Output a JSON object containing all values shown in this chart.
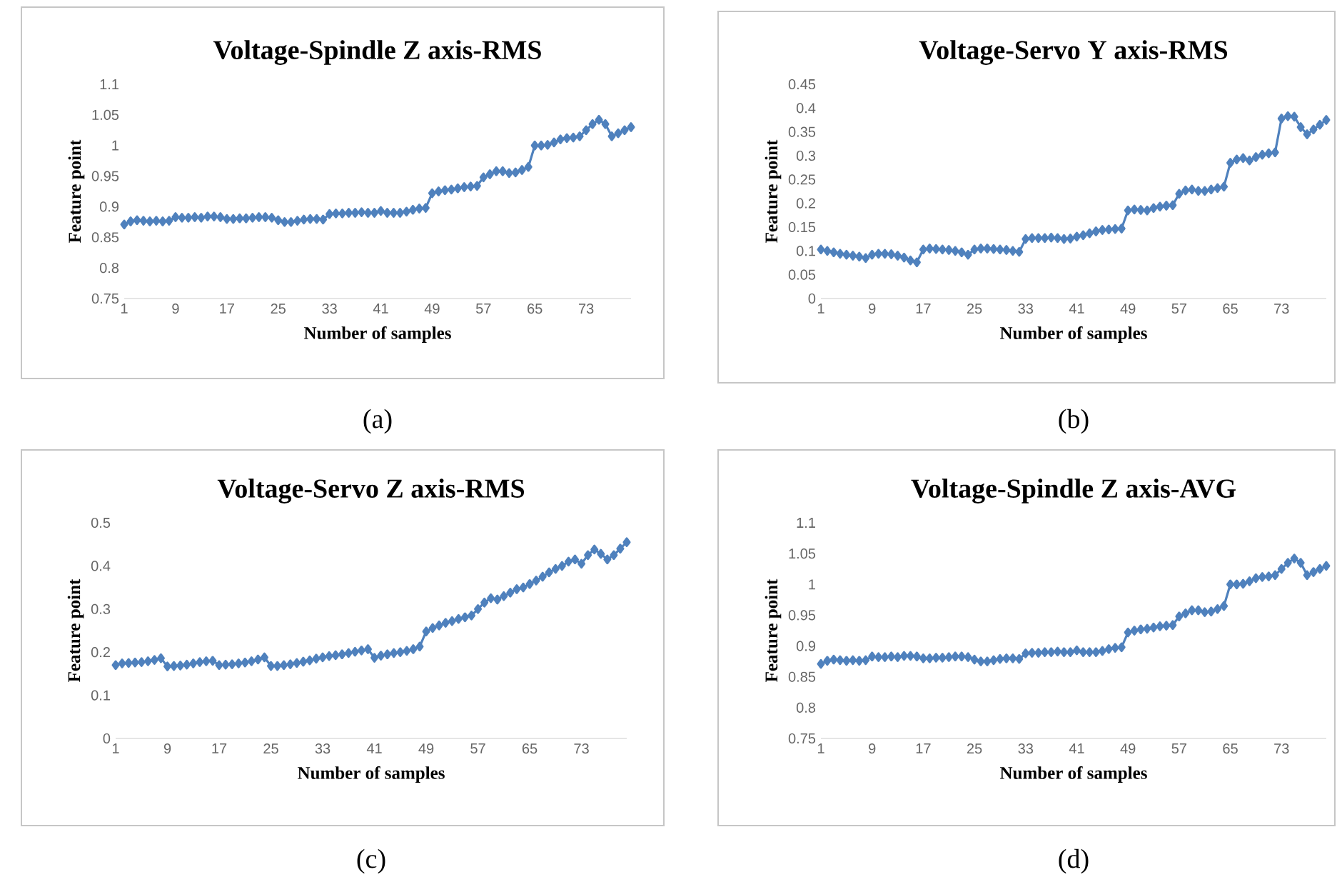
{
  "chart_data": [
    {
      "type": "line",
      "title": "Voltage-Spindle Z axis-RMS",
      "xlabel": "Number of samples",
      "ylabel": "Feature point",
      "annotations": [
        "(a)"
      ],
      "marker": "diamond",
      "color": "#4f81bd",
      "ylim": [
        0.75,
        1.1
      ],
      "yticks": [
        0.75,
        0.8,
        0.85,
        0.9,
        0.95,
        1,
        1.05,
        1.1
      ],
      "categories": [
        "1",
        null,
        null,
        null,
        null,
        null,
        null,
        null,
        "9",
        null,
        null,
        null,
        null,
        null,
        null,
        null,
        "17",
        null,
        null,
        null,
        null,
        null,
        null,
        null,
        "25",
        null,
        null,
        null,
        null,
        null,
        null,
        null,
        "33",
        null,
        null,
        null,
        null,
        null,
        null,
        null,
        "41",
        null,
        null,
        null,
        null,
        null,
        null,
        null,
        "49",
        null,
        null,
        null,
        null,
        null,
        null,
        null,
        "57",
        null,
        null,
        null,
        null,
        null,
        null,
        null,
        "65",
        null,
        null,
        null,
        null,
        null,
        null,
        null,
        "73",
        null,
        null,
        null,
        null,
        null,
        null,
        null
      ],
      "values": [
        0.871,
        0.876,
        0.878,
        0.877,
        0.876,
        0.877,
        0.876,
        0.877,
        0.883,
        0.882,
        0.882,
        0.883,
        0.882,
        0.884,
        0.884,
        0.883,
        0.88,
        0.88,
        0.881,
        0.881,
        0.882,
        0.883,
        0.883,
        0.882,
        0.878,
        0.875,
        0.875,
        0.877,
        0.879,
        0.88,
        0.88,
        0.879,
        0.888,
        0.889,
        0.889,
        0.89,
        0.89,
        0.891,
        0.89,
        0.89,
        0.893,
        0.89,
        0.89,
        0.89,
        0.892,
        0.895,
        0.897,
        0.898,
        0.922,
        0.925,
        0.927,
        0.928,
        0.93,
        0.932,
        0.933,
        0.934,
        0.948,
        0.953,
        0.958,
        0.958,
        0.955,
        0.956,
        0.96,
        0.965,
        1.0,
        1.0,
        1.001,
        1.005,
        1.01,
        1.012,
        1.013,
        1.015,
        1.025,
        1.035,
        1.042,
        1.035,
        1.015,
        1.02,
        1.025,
        1.03
      ]
    },
    {
      "type": "line",
      "title": "Voltage-Servo Y axis-RMS",
      "xlabel": "Number of samples",
      "ylabel": "Feature point",
      "annotations": [
        "(b)"
      ],
      "marker": "diamond",
      "color": "#4f81bd",
      "ylim": [
        0,
        0.45
      ],
      "yticks": [
        0,
        0.05,
        0.1,
        0.15,
        0.2,
        0.25,
        0.3,
        0.35,
        0.4,
        0.45
      ],
      "categories": [
        "1",
        null,
        null,
        null,
        null,
        null,
        null,
        null,
        "9",
        null,
        null,
        null,
        null,
        null,
        null,
        null,
        "17",
        null,
        null,
        null,
        null,
        null,
        null,
        null,
        "25",
        null,
        null,
        null,
        null,
        null,
        null,
        null,
        "33",
        null,
        null,
        null,
        null,
        null,
        null,
        null,
        "41",
        null,
        null,
        null,
        null,
        null,
        null,
        null,
        "49",
        null,
        null,
        null,
        null,
        null,
        null,
        null,
        "57",
        null,
        null,
        null,
        null,
        null,
        null,
        null,
        "65",
        null,
        null,
        null,
        null,
        null,
        null,
        null,
        "73",
        null,
        null,
        null,
        null,
        null,
        null,
        null
      ],
      "values": [
        0.103,
        0.1,
        0.097,
        0.094,
        0.092,
        0.09,
        0.088,
        0.085,
        0.092,
        0.094,
        0.094,
        0.093,
        0.09,
        0.086,
        0.08,
        0.076,
        0.103,
        0.105,
        0.104,
        0.103,
        0.102,
        0.1,
        0.097,
        0.092,
        0.103,
        0.105,
        0.105,
        0.104,
        0.103,
        0.102,
        0.1,
        0.098,
        0.125,
        0.127,
        0.127,
        0.127,
        0.128,
        0.127,
        0.125,
        0.126,
        0.13,
        0.133,
        0.137,
        0.141,
        0.144,
        0.145,
        0.146,
        0.147,
        0.185,
        0.187,
        0.186,
        0.185,
        0.19,
        0.193,
        0.195,
        0.196,
        0.22,
        0.227,
        0.229,
        0.226,
        0.226,
        0.229,
        0.232,
        0.235,
        0.285,
        0.292,
        0.295,
        0.29,
        0.297,
        0.302,
        0.305,
        0.307,
        0.378,
        0.383,
        0.382,
        0.36,
        0.345,
        0.355,
        0.365,
        0.375
      ]
    },
    {
      "type": "line",
      "title": "Voltage-Servo Z axis-RMS",
      "xlabel": "Number of samples",
      "ylabel": "Feature point",
      "annotations": [
        "(c)"
      ],
      "marker": "diamond",
      "color": "#4f81bd",
      "ylim": [
        0,
        0.5
      ],
      "yticks": [
        0,
        0.1,
        0.2,
        0.3,
        0.4,
        0.5
      ],
      "categories": [
        "1",
        null,
        null,
        null,
        null,
        null,
        null,
        null,
        "9",
        null,
        null,
        null,
        null,
        null,
        null,
        null,
        "17",
        null,
        null,
        null,
        null,
        null,
        null,
        null,
        "25",
        null,
        null,
        null,
        null,
        null,
        null,
        null,
        "33",
        null,
        null,
        null,
        null,
        null,
        null,
        null,
        "41",
        null,
        null,
        null,
        null,
        null,
        null,
        null,
        "49",
        null,
        null,
        null,
        null,
        null,
        null,
        null,
        "57",
        null,
        null,
        null,
        null,
        null,
        null,
        null,
        "65",
        null,
        null,
        null,
        null,
        null,
        null,
        null,
        "73",
        null,
        null,
        null,
        null,
        null,
        null,
        null
      ],
      "values": [
        0.17,
        0.174,
        0.175,
        0.176,
        0.177,
        0.179,
        0.182,
        0.186,
        0.167,
        0.168,
        0.169,
        0.171,
        0.174,
        0.177,
        0.179,
        0.18,
        0.17,
        0.171,
        0.172,
        0.174,
        0.176,
        0.179,
        0.183,
        0.188,
        0.168,
        0.168,
        0.17,
        0.172,
        0.175,
        0.178,
        0.181,
        0.185,
        0.188,
        0.191,
        0.193,
        0.195,
        0.198,
        0.201,
        0.204,
        0.207,
        0.187,
        0.192,
        0.195,
        0.198,
        0.2,
        0.203,
        0.207,
        0.213,
        0.248,
        0.256,
        0.262,
        0.268,
        0.272,
        0.277,
        0.281,
        0.285,
        0.3,
        0.315,
        0.325,
        0.322,
        0.33,
        0.338,
        0.346,
        0.35,
        0.358,
        0.366,
        0.375,
        0.385,
        0.393,
        0.4,
        0.41,
        0.415,
        0.405,
        0.425,
        0.438,
        0.428,
        0.415,
        0.425,
        0.44,
        0.455
      ]
    },
    {
      "type": "line",
      "title": "Voltage-Spindle Z axis-AVG",
      "xlabel": "Number of samples",
      "ylabel": "Feature point",
      "annotations": [
        "(d)"
      ],
      "marker": "diamond",
      "color": "#4f81bd",
      "ylim": [
        0.75,
        1.1
      ],
      "yticks": [
        0.75,
        0.8,
        0.85,
        0.9,
        0.95,
        1,
        1.05,
        1.1
      ],
      "categories": [
        "1",
        null,
        null,
        null,
        null,
        null,
        null,
        null,
        "9",
        null,
        null,
        null,
        null,
        null,
        null,
        null,
        "17",
        null,
        null,
        null,
        null,
        null,
        null,
        null,
        "25",
        null,
        null,
        null,
        null,
        null,
        null,
        null,
        "33",
        null,
        null,
        null,
        null,
        null,
        null,
        null,
        "41",
        null,
        null,
        null,
        null,
        null,
        null,
        null,
        "49",
        null,
        null,
        null,
        null,
        null,
        null,
        null,
        "57",
        null,
        null,
        null,
        null,
        null,
        null,
        null,
        "65",
        null,
        null,
        null,
        null,
        null,
        null,
        null,
        "73",
        null,
        null,
        null,
        null,
        null,
        null,
        null
      ],
      "values": [
        0.871,
        0.876,
        0.878,
        0.877,
        0.876,
        0.877,
        0.876,
        0.877,
        0.883,
        0.882,
        0.882,
        0.883,
        0.882,
        0.884,
        0.884,
        0.883,
        0.88,
        0.88,
        0.881,
        0.881,
        0.882,
        0.883,
        0.883,
        0.882,
        0.878,
        0.875,
        0.875,
        0.877,
        0.879,
        0.88,
        0.88,
        0.879,
        0.888,
        0.889,
        0.889,
        0.89,
        0.89,
        0.891,
        0.89,
        0.89,
        0.893,
        0.89,
        0.89,
        0.89,
        0.892,
        0.895,
        0.897,
        0.898,
        0.922,
        0.925,
        0.927,
        0.928,
        0.93,
        0.932,
        0.933,
        0.934,
        0.948,
        0.953,
        0.958,
        0.958,
        0.955,
        0.956,
        0.96,
        0.965,
        1.0,
        1.0,
        1.001,
        1.005,
        1.01,
        1.012,
        1.013,
        1.015,
        1.025,
        1.035,
        1.042,
        1.035,
        1.015,
        1.02,
        1.025,
        1.03
      ]
    }
  ]
}
